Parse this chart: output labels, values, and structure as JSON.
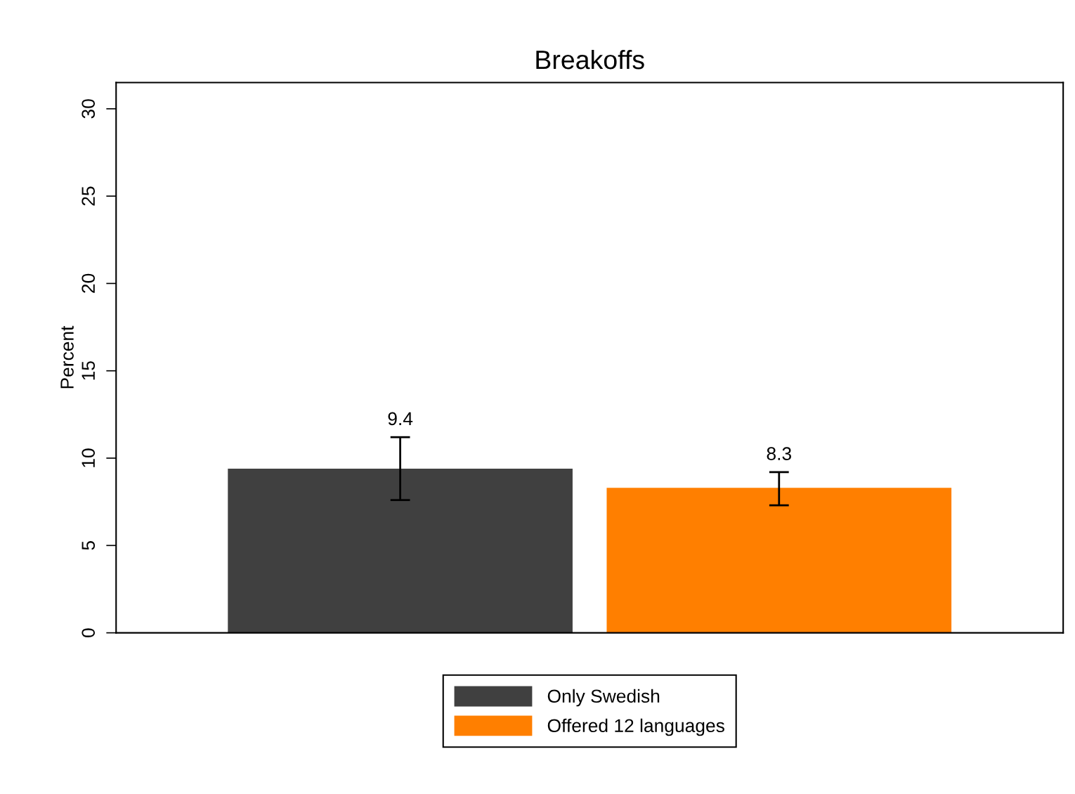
{
  "chart_data": {
    "type": "bar",
    "title": "Breakoffs",
    "ylabel": "Percent",
    "categories": [
      null
    ],
    "series": [
      {
        "name": "Only Swedish",
        "color": "#404040",
        "values": [
          9.4
        ],
        "errors": [
          [
            7.6,
            11.2
          ]
        ]
      },
      {
        "name": "Offered 12 languages",
        "color": "#ff7f00",
        "values": [
          8.3
        ],
        "errors": [
          [
            7.3,
            9.2
          ]
        ]
      }
    ],
    "ylim": [
      0,
      31.5
    ],
    "yticks": [
      0,
      5,
      10,
      15,
      20,
      25,
      30
    ],
    "data_labels": true,
    "grid": false,
    "legend": "bottom"
  }
}
